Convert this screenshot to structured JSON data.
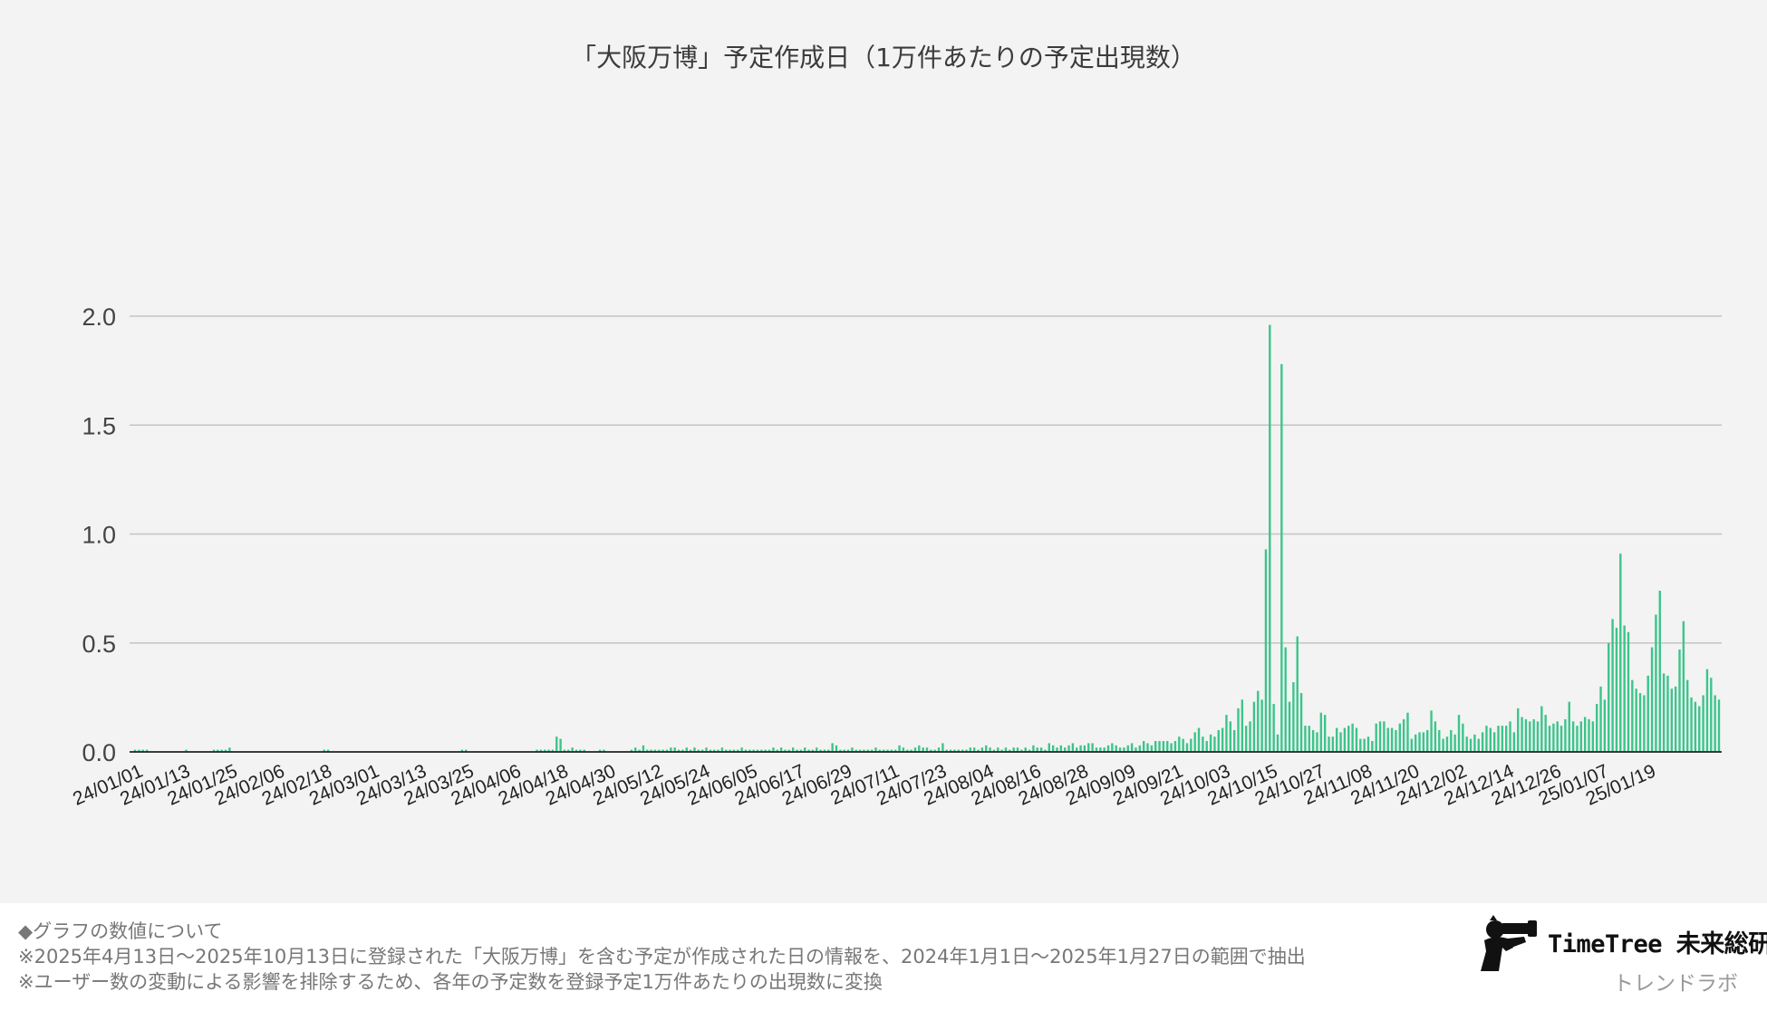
{
  "chart_data": {
    "type": "bar",
    "title": "「大阪万博」予定作成日（1万件あたりの予定出現数）",
    "xlabel": "",
    "ylabel": "",
    "ylim": [
      0,
      2.0
    ],
    "yticks": [
      "0.0",
      "0.5",
      "1.0",
      "1.5",
      "2.0"
    ],
    "xtick_labels": [
      "24/01/01",
      "24/01/13",
      "24/01/25",
      "24/02/06",
      "24/02/18",
      "24/03/01",
      "24/03/13",
      "24/03/25",
      "24/04/06",
      "24/04/18",
      "24/04/30",
      "24/05/12",
      "24/05/24",
      "24/06/05",
      "24/06/17",
      "24/06/29",
      "24/07/11",
      "24/07/23",
      "24/08/04",
      "24/08/16",
      "24/08/28",
      "24/09/09",
      "24/09/21",
      "24/10/03",
      "24/10/15",
      "24/10/27",
      "24/11/08",
      "24/11/20",
      "24/12/02",
      "24/12/14",
      "24/12/26",
      "25/01/07",
      "25/01/19"
    ],
    "grid": true,
    "legend": "none",
    "bar_color": "#3cc48a",
    "x_start": "2024-01-01",
    "x_end": "2025-01-27",
    "values": [
      0.01,
      0.01,
      0.01,
      0.01,
      0,
      0,
      0,
      0,
      0,
      0,
      0,
      0,
      0,
      0.01,
      0,
      0,
      0,
      0,
      0,
      0,
      0.01,
      0.01,
      0.01,
      0.01,
      0.02,
      0,
      0,
      0,
      0,
      0,
      0,
      0,
      0,
      0,
      0,
      0,
      0,
      0,
      0,
      0,
      0,
      0,
      0,
      0,
      0,
      0,
      0,
      0,
      0.01,
      0.01,
      0,
      0,
      0,
      0,
      0,
      0,
      0,
      0,
      0,
      0,
      0,
      0,
      0,
      0,
      0,
      0,
      0,
      0,
      0,
      0,
      0,
      0,
      0,
      0,
      0,
      0,
      0,
      0,
      0,
      0,
      0,
      0,
      0,
      0.01,
      0.01,
      0,
      0,
      0,
      0,
      0,
      0,
      0,
      0,
      0,
      0,
      0,
      0,
      0,
      0,
      0,
      0,
      0,
      0.01,
      0.01,
      0.01,
      0.01,
      0.01,
      0.07,
      0.06,
      0.01,
      0.01,
      0.02,
      0.01,
      0.01,
      0.01,
      0,
      0,
      0,
      0.01,
      0.01,
      0,
      0,
      0,
      0,
      0,
      0,
      0.01,
      0.02,
      0.01,
      0.03,
      0.01,
      0.01,
      0.01,
      0.01,
      0.01,
      0.01,
      0.02,
      0.02,
      0.01,
      0.01,
      0.02,
      0.01,
      0.02,
      0.01,
      0.01,
      0.02,
      0.01,
      0.01,
      0.01,
      0.02,
      0.01,
      0.01,
      0.01,
      0.01,
      0.02,
      0.01,
      0.01,
      0.01,
      0.01,
      0.01,
      0.01,
      0.01,
      0.02,
      0.01,
      0.02,
      0.01,
      0.01,
      0.02,
      0.01,
      0.01,
      0.02,
      0.01,
      0.01,
      0.02,
      0.01,
      0.01,
      0.01,
      0.04,
      0.03,
      0.01,
      0.01,
      0.01,
      0.02,
      0.01,
      0.01,
      0.01,
      0.01,
      0.01,
      0.02,
      0.01,
      0.01,
      0.01,
      0.01,
      0.01,
      0.03,
      0.02,
      0.01,
      0.01,
      0.02,
      0.03,
      0.02,
      0.02,
      0.01,
      0.01,
      0.02,
      0.04,
      0.01,
      0.01,
      0.01,
      0.01,
      0.01,
      0.01,
      0.02,
      0.02,
      0.01,
      0.02,
      0.03,
      0.02,
      0.01,
      0.02,
      0.01,
      0.02,
      0.01,
      0.02,
      0.02,
      0.01,
      0.02,
      0.01,
      0.03,
      0.02,
      0.02,
      0.01,
      0.04,
      0.03,
      0.02,
      0.03,
      0.02,
      0.03,
      0.04,
      0.02,
      0.03,
      0.03,
      0.04,
      0.04,
      0.02,
      0.02,
      0.02,
      0.03,
      0.04,
      0.03,
      0.02,
      0.02,
      0.03,
      0.04,
      0.02,
      0.03,
      0.05,
      0.04,
      0.03,
      0.05,
      0.05,
      0.05,
      0.05,
      0.04,
      0.05,
      0.07,
      0.06,
      0.04,
      0.06,
      0.09,
      0.11,
      0.07,
      0.05,
      0.08,
      0.07,
      0.1,
      0.11,
      0.17,
      0.14,
      0.1,
      0.2,
      0.24,
      0.12,
      0.14,
      0.23,
      0.28,
      0.24,
      0.93,
      1.96,
      0.22,
      0.08,
      1.78,
      0.48,
      0.23,
      0.32,
      0.53,
      0.27,
      0.12,
      0.12,
      0.1,
      0.09,
      0.18,
      0.17,
      0.07,
      0.07,
      0.11,
      0.09,
      0.11,
      0.12,
      0.13,
      0.11,
      0.06,
      0.06,
      0.07,
      0.05,
      0.13,
      0.14,
      0.14,
      0.11,
      0.11,
      0.1,
      0.13,
      0.15,
      0.18,
      0.06,
      0.08,
      0.09,
      0.09,
      0.1,
      0.19,
      0.14,
      0.1,
      0.06,
      0.07,
      0.1,
      0.08,
      0.17,
      0.13,
      0.07,
      0.06,
      0.08,
      0.06,
      0.09,
      0.12,
      0.11,
      0.09,
      0.12,
      0.12,
      0.12,
      0.14,
      0.09,
      0.2,
      0.16,
      0.15,
      0.14,
      0.15,
      0.14,
      0.21,
      0.17,
      0.12,
      0.13,
      0.14,
      0.12,
      0.15,
      0.23,
      0.14,
      0.12,
      0.14,
      0.16,
      0.15,
      0.14,
      0.22,
      0.3,
      0.24,
      0.5,
      0.61,
      0.57,
      0.91,
      0.58,
      0.55,
      0.33,
      0.29,
      0.27,
      0.26,
      0.35,
      0.48,
      0.63,
      0.74,
      0.36,
      0.35,
      0.29,
      0.3,
      0.47,
      0.6,
      0.33,
      0.25,
      0.23,
      0.21,
      0.26,
      0.38,
      0.34,
      0.26,
      0.24
    ]
  },
  "notes": {
    "line1": "◆グラフの数値について",
    "line2": "※2025年4月13日〜2025年10月13日に登録された「大阪万博」を含む予定が作成された日の情報を、2024年1月1日〜2025年1月27日の範囲で抽出",
    "line3": "※ユーザー数の変動による影響を排除するため、各年の予定数を登録予定1万件あたりの出現数に変換"
  },
  "brand": {
    "name": "TimeTree 未来総研",
    "sub": "トレンドラボ",
    "logo_icon": "binoculars-person-icon"
  }
}
